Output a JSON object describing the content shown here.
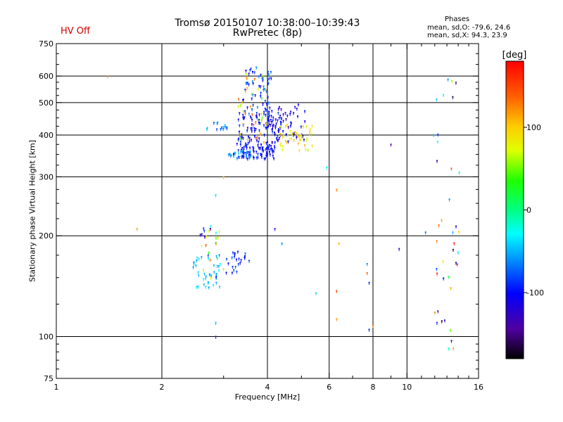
{
  "header": {
    "title": "Tromsø 20150107 10:38:00–10:39:43",
    "subtitle": "RwPretec (8p)",
    "status": "HV Off"
  },
  "phases_panel": {
    "title": "Phases",
    "line_o": "mean, sd,O: -79.6, 24.6",
    "line_x": "mean, sd,X:  94.3, 23.9"
  },
  "colorbar": {
    "label": "[deg]",
    "ticks": [
      100,
      0,
      -100
    ],
    "range": [
      -180,
      180
    ]
  },
  "chart_data": {
    "type": "scatter",
    "title": "Tromsø 20150107 10:38:00–10:39:43",
    "subtitle": "RwPretec (8p)",
    "xlabel": "Frequency [MHz]",
    "ylabel": "Stationary phase Virtual Height [km]",
    "x_scale": "log",
    "y_scale": "log",
    "xlim": [
      1,
      16
    ],
    "ylim": [
      75,
      750
    ],
    "x_ticks": [
      1,
      2,
      4,
      6,
      8,
      10,
      16
    ],
    "x_minor_ticks": [
      3,
      5,
      7,
      9,
      11,
      12,
      13,
      14,
      15
    ],
    "y_ticks": [
      75,
      100,
      200,
      300,
      400,
      500,
      600,
      750
    ],
    "x_grid": [
      2,
      4,
      6,
      8,
      10
    ],
    "y_grid": [
      100,
      200,
      300,
      400,
      500,
      600
    ],
    "clusters": [
      {
        "x": [
          3.2,
          4.2
        ],
        "y": [
          340,
          380
        ],
        "phase": [
          -110,
          -85
        ],
        "n": 90
      },
      {
        "x": [
          3.3,
          4.4
        ],
        "y": [
          380,
          470
        ],
        "phase": [
          -120,
          -80
        ],
        "n": 85
      },
      {
        "x": [
          3.4,
          4.1
        ],
        "y": [
          460,
          640
        ],
        "phase": [
          -125,
          -60
        ],
        "n": 60
      },
      {
        "x": [
          4.0,
          5.2
        ],
        "y": [
          380,
          500
        ],
        "phase": [
          -130,
          -95
        ],
        "n": 55
      },
      {
        "x": [
          4.3,
          5.4
        ],
        "y": [
          360,
          430
        ],
        "phase": [
          60,
          110
        ],
        "n": 45
      },
      {
        "x": [
          2.65,
          3.1
        ],
        "y": [
          410,
          440
        ],
        "phase": [
          -80,
          -40
        ],
        "n": 15
      },
      {
        "x": [
          3.1,
          3.6
        ],
        "y": [
          340,
          360
        ],
        "phase": [
          -70,
          -40
        ],
        "n": 20
      },
      {
        "x": [
          3.3,
          4.0
        ],
        "y": [
          380,
          620
        ],
        "phase": [
          40,
          150
        ],
        "n": 35
      },
      {
        "x": [
          2.45,
          2.95
        ],
        "y": [
          140,
          175
        ],
        "phase": [
          -60,
          -30
        ],
        "n": 40
      },
      {
        "x": [
          2.55,
          3.0
        ],
        "y": [
          150,
          215
        ],
        "phase": [
          -140,
          160
        ],
        "n": 25
      },
      {
        "x": [
          3.05,
          3.55
        ],
        "y": [
          155,
          180
        ],
        "phase": [
          -110,
          -70
        ],
        "n": 25
      },
      {
        "x": [
          11.9,
          14.1
        ],
        "y": [
          90,
          640
        ],
        "phase": [
          -180,
          180
        ],
        "n": 40
      }
    ],
    "points": [
      {
        "x": 1.4,
        "y": 600,
        "phase": 130
      },
      {
        "x": 1.7,
        "y": 210,
        "phase": 120
      },
      {
        "x": 2.75,
        "y": 210,
        "phase": -150
      },
      {
        "x": 2.85,
        "y": 265,
        "phase": -40
      },
      {
        "x": 2.85,
        "y": 100,
        "phase": -140
      },
      {
        "x": 2.85,
        "y": 110,
        "phase": -50
      },
      {
        "x": 3.0,
        "y": 300,
        "phase": 110
      },
      {
        "x": 4.2,
        "y": 210,
        "phase": -120
      },
      {
        "x": 4.4,
        "y": 190,
        "phase": -60
      },
      {
        "x": 5.5,
        "y": 135,
        "phase": -40
      },
      {
        "x": 5.9,
        "y": 320,
        "phase": -30
      },
      {
        "x": 6.3,
        "y": 275,
        "phase": 130
      },
      {
        "x": 6.3,
        "y": 137,
        "phase": 150
      },
      {
        "x": 6.4,
        "y": 190,
        "phase": 110
      },
      {
        "x": 6.3,
        "y": 113,
        "phase": 120
      },
      {
        "x": 7.7,
        "y": 165,
        "phase": -60
      },
      {
        "x": 7.7,
        "y": 155,
        "phase": 140
      },
      {
        "x": 7.8,
        "y": 145,
        "phase": -90
      },
      {
        "x": 7.8,
        "y": 105,
        "phase": -90
      },
      {
        "x": 8.0,
        "y": 108,
        "phase": 130
      },
      {
        "x": 9.0,
        "y": 375,
        "phase": -140
      },
      {
        "x": 9.5,
        "y": 183,
        "phase": -110
      },
      {
        "x": 11.3,
        "y": 205,
        "phase": -70
      }
    ]
  }
}
